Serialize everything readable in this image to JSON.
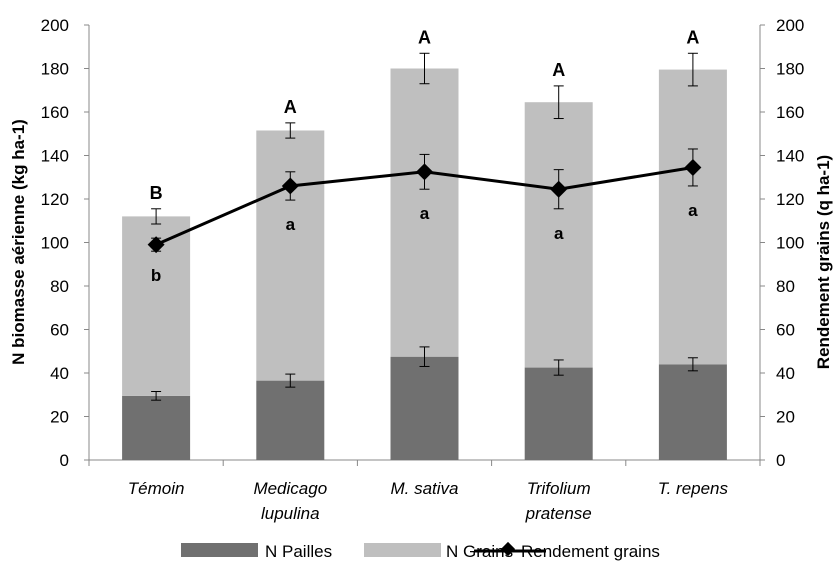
{
  "chart_data": {
    "type": "bar",
    "categories": [
      [
        "Témoin"
      ],
      [
        "Medicago",
        "lupulina"
      ],
      [
        "M. sativa"
      ],
      [
        "Trifolium",
        "pratense"
      ],
      [
        "T. repens"
      ]
    ],
    "left_axis": {
      "label": "N biomasse aérienne (kg ha-1)",
      "ylim": [
        0,
        200
      ],
      "ticks": [
        "0",
        "20",
        "40",
        "60",
        "80",
        "100",
        "120",
        "140",
        "160",
        "180",
        "200"
      ]
    },
    "right_axis": {
      "label": "Rendement grains (q ha-1)",
      "ylim": [
        0,
        200
      ],
      "ticks": [
        "0",
        "20",
        "40",
        "60",
        "80",
        "100",
        "120",
        "140",
        "160",
        "180",
        "200"
      ]
    },
    "series": [
      {
        "name": "N Pailles",
        "kind": "stacked-bar",
        "color": "#707070",
        "values": [
          29.5,
          36.5,
          47.5,
          42.5,
          44
        ],
        "errors": [
          2,
          3,
          4.5,
          3.5,
          3
        ]
      },
      {
        "name": "N Grains",
        "kind": "stacked-bar",
        "color": "#bfbfbf",
        "values": [
          82.5,
          115,
          132.5,
          122,
          135.5
        ],
        "errors": [
          3.5,
          3.5,
          7,
          7.5,
          7.5
        ]
      },
      {
        "name": "Rendement grains",
        "kind": "line",
        "color": "#000000",
        "values": [
          99,
          126,
          132.5,
          124.5,
          134.5
        ],
        "errors": [
          3,
          6.5,
          8,
          9,
          8.5
        ]
      }
    ],
    "letters_total": [
      "B",
      "A",
      "A",
      "A",
      "A"
    ],
    "letters_rendement": [
      "b",
      "a",
      "a",
      "a",
      "a"
    ],
    "legend_position": "bottom"
  }
}
